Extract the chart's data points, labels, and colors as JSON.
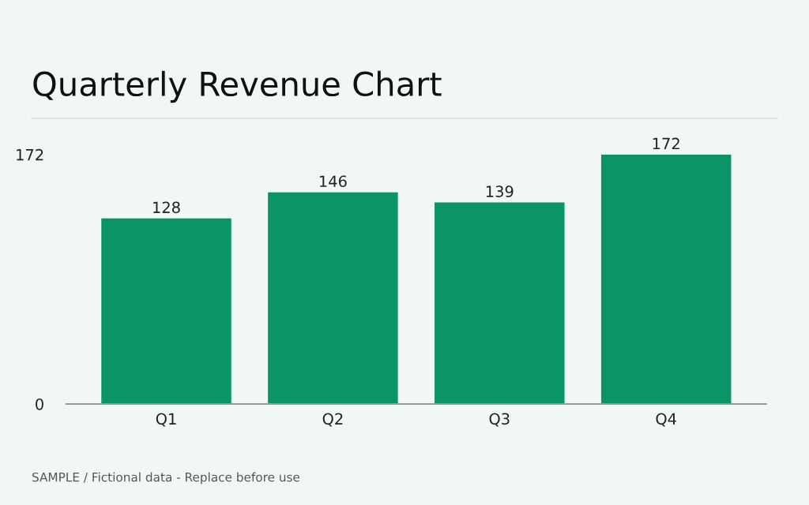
{
  "chart_data": {
    "type": "bar",
    "title": "Quarterly Revenue Chart",
    "categories": [
      "Q1",
      "Q2",
      "Q3",
      "Q4"
    ],
    "values": [
      128,
      146,
      139,
      172
    ],
    "color": "#0b9467",
    "ylim": [
      0,
      172
    ],
    "yticks": [
      0,
      172
    ],
    "grid": false,
    "data_labels": true,
    "annotations": [
      "SAMPLE / Fictional data - Replace before use"
    ]
  }
}
